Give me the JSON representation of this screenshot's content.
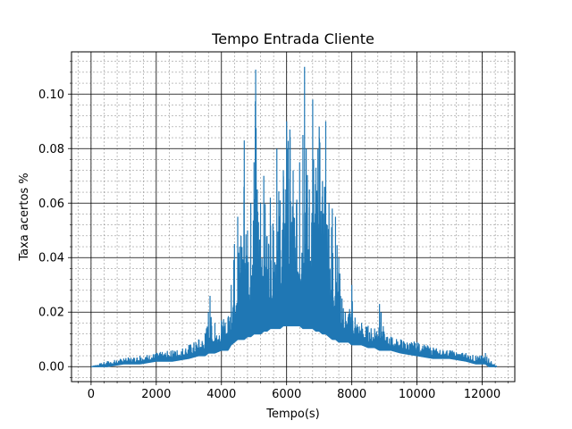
{
  "chart_data": {
    "type": "line",
    "title": "Tempo Entrada Cliente",
    "xlabel": "Tempo(s)",
    "ylabel": "Taxa acertos %",
    "xlim": [
      -600,
      13000
    ],
    "ylim": [
      -0.0055,
      0.1155
    ],
    "xticks": [
      0,
      2000,
      4000,
      6000,
      8000,
      10000,
      12000
    ],
    "yticks": [
      0.0,
      0.02,
      0.04,
      0.06,
      0.08,
      0.1
    ],
    "xtick_labels": [
      "0",
      "2000",
      "4000",
      "6000",
      "8000",
      "10000",
      "12000"
    ],
    "ytick_labels": [
      "0.00",
      "0.02",
      "0.04",
      "0.06",
      "0.08",
      "0.10"
    ],
    "grid": {
      "major": true,
      "minor": true
    },
    "series": [
      {
        "color": "#1f77b4",
        "x": [
          0,
          500,
          1000,
          1500,
          2000,
          2500,
          3000,
          3300,
          3500,
          3600,
          3650,
          3700,
          3800,
          4000,
          4200,
          4300,
          4400,
          4500,
          4600,
          4700,
          4800,
          4900,
          5000,
          5050,
          5100,
          5200,
          5300,
          5400,
          5500,
          5600,
          5700,
          5800,
          5900,
          6000,
          6100,
          6200,
          6300,
          6400,
          6500,
          6550,
          6600,
          6700,
          6800,
          6900,
          7000,
          7100,
          7200,
          7300,
          7400,
          7500,
          7600,
          7700,
          7800,
          7900,
          8000,
          8100,
          8300,
          8500,
          8700,
          8850,
          8900,
          9000,
          9200,
          9500,
          10000,
          10500,
          11000,
          11500,
          11800,
          12000,
          12100,
          12200,
          12450
        ],
        "upper": [
          0.0,
          0.002,
          0.003,
          0.004,
          0.005,
          0.006,
          0.008,
          0.01,
          0.012,
          0.02,
          0.026,
          0.015,
          0.016,
          0.017,
          0.018,
          0.03,
          0.045,
          0.055,
          0.048,
          0.083,
          0.05,
          0.06,
          0.075,
          0.109,
          0.065,
          0.06,
          0.07,
          0.048,
          0.062,
          0.05,
          0.08,
          0.061,
          0.072,
          0.09,
          0.087,
          0.072,
          0.06,
          0.075,
          0.085,
          0.11,
          0.08,
          0.065,
          0.098,
          0.073,
          0.088,
          0.068,
          0.09,
          0.06,
          0.058,
          0.055,
          0.04,
          0.025,
          0.02,
          0.019,
          0.03,
          0.018,
          0.016,
          0.015,
          0.014,
          0.023,
          0.02,
          0.012,
          0.011,
          0.01,
          0.009,
          0.007,
          0.006,
          0.005,
          0.004,
          0.004,
          0.005,
          0.003,
          0.0
        ],
        "lower": [
          0.0,
          0.0,
          0.001,
          0.001,
          0.002,
          0.002,
          0.003,
          0.004,
          0.004,
          0.005,
          0.005,
          0.005,
          0.005,
          0.006,
          0.006,
          0.008,
          0.009,
          0.01,
          0.01,
          0.01,
          0.011,
          0.011,
          0.012,
          0.012,
          0.012,
          0.012,
          0.013,
          0.013,
          0.014,
          0.014,
          0.014,
          0.014,
          0.015,
          0.015,
          0.015,
          0.015,
          0.015,
          0.015,
          0.014,
          0.014,
          0.014,
          0.014,
          0.014,
          0.013,
          0.013,
          0.012,
          0.012,
          0.011,
          0.01,
          0.01,
          0.009,
          0.009,
          0.009,
          0.009,
          0.008,
          0.008,
          0.008,
          0.007,
          0.007,
          0.006,
          0.006,
          0.006,
          0.006,
          0.005,
          0.004,
          0.003,
          0.003,
          0.002,
          0.001,
          0.001,
          0.001,
          0.0,
          0.0
        ]
      }
    ]
  }
}
